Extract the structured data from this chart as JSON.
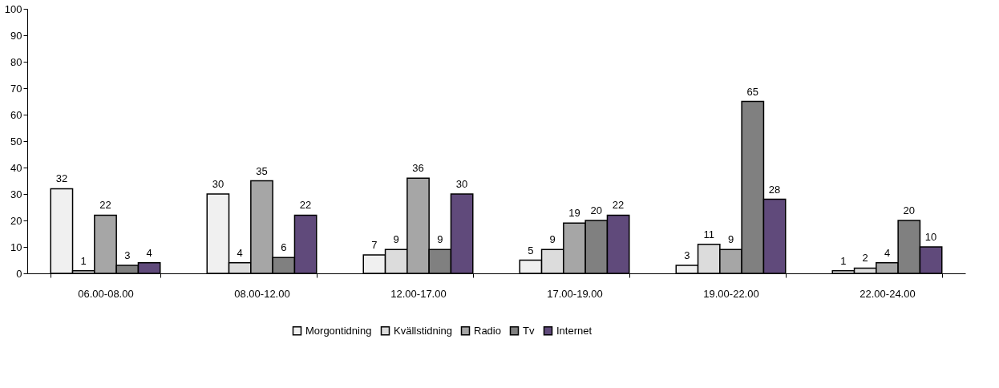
{
  "chart_data": {
    "type": "bar",
    "categories": [
      "06.00-08.00",
      "08.00-12.00",
      "12.00-17.00",
      "17.00-19.00",
      "19.00-22.00",
      "22.00-24.00"
    ],
    "series": [
      {
        "name": "Morgontidning",
        "color": "#f0f0f0",
        "values": [
          32,
          30,
          7,
          5,
          3,
          1
        ]
      },
      {
        "name": "Kvällstidning",
        "color": "#dcdcdc",
        "values": [
          1,
          4,
          9,
          9,
          11,
          2
        ]
      },
      {
        "name": "Radio",
        "color": "#a6a6a6",
        "values": [
          22,
          35,
          36,
          19,
          9,
          4
        ]
      },
      {
        "name": "Tv",
        "color": "#808080",
        "values": [
          3,
          6,
          9,
          20,
          65,
          20
        ]
      },
      {
        "name": "Internet",
        "color": "#604a7b",
        "values": [
          4,
          22,
          30,
          22,
          28,
          10
        ]
      }
    ],
    "ylim": [
      0,
      100
    ],
    "yticks": [
      0,
      10,
      20,
      30,
      40,
      50,
      60,
      70,
      80,
      90,
      100
    ],
    "grid": false,
    "legend": "bottom",
    "data_labels": true
  }
}
